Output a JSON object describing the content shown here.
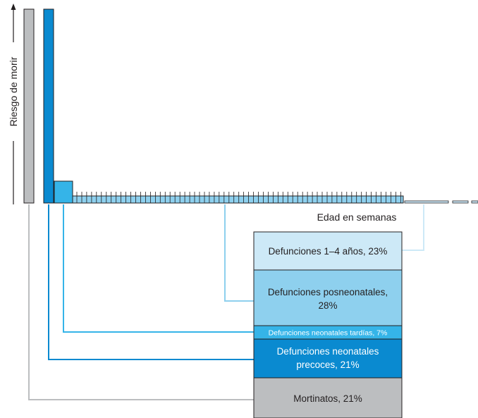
{
  "chart_data": {
    "type": "bar",
    "ylabel": "Riesgo de morir",
    "xlabel": "Edad en semanas",
    "grid": false,
    "categories": [
      "Mortinatos, 21%",
      "Defunciones neonatales precoces, 21%",
      "Defunciones neonatales tardías, 7%",
      "Defunciones posneonatales, 28%",
      "Defunciones 1–4 años, 23%"
    ],
    "series": [
      {
        "values": [
          21,
          21,
          7,
          28,
          23
        ]
      }
    ],
    "segments": [
      {
        "label_lines": [
          "Mortinatos, 21%"
        ],
        "color": "#bcbec0",
        "text_color": "#231f20"
      },
      {
        "label_lines": [
          "Defunciones neonatales",
          "precoces, 21%"
        ],
        "color": "#0a8ad0",
        "text_color": "#ffffff"
      },
      {
        "label_lines": [
          "Defunciones neonatales tardías, 7%"
        ],
        "color": "#35b4e8",
        "text_color": "#ffffff"
      },
      {
        "label_lines": [
          "Defunciones posneonatales,",
          "28%"
        ],
        "color": "#8ed0ee",
        "text_color": "#231f20"
      },
      {
        "label_lines": [
          "Defunciones 1–4 años, 23%"
        ],
        "color": "#cde9f7",
        "text_color": "#231f20"
      }
    ],
    "colors": {
      "stillbirth": "#bcbec0",
      "early_neonatal": "#0a8ad0",
      "late_neonatal": "#35b4e8",
      "postneonatal": "#8ed0ee",
      "age_1_4": "#cde9f7"
    }
  }
}
